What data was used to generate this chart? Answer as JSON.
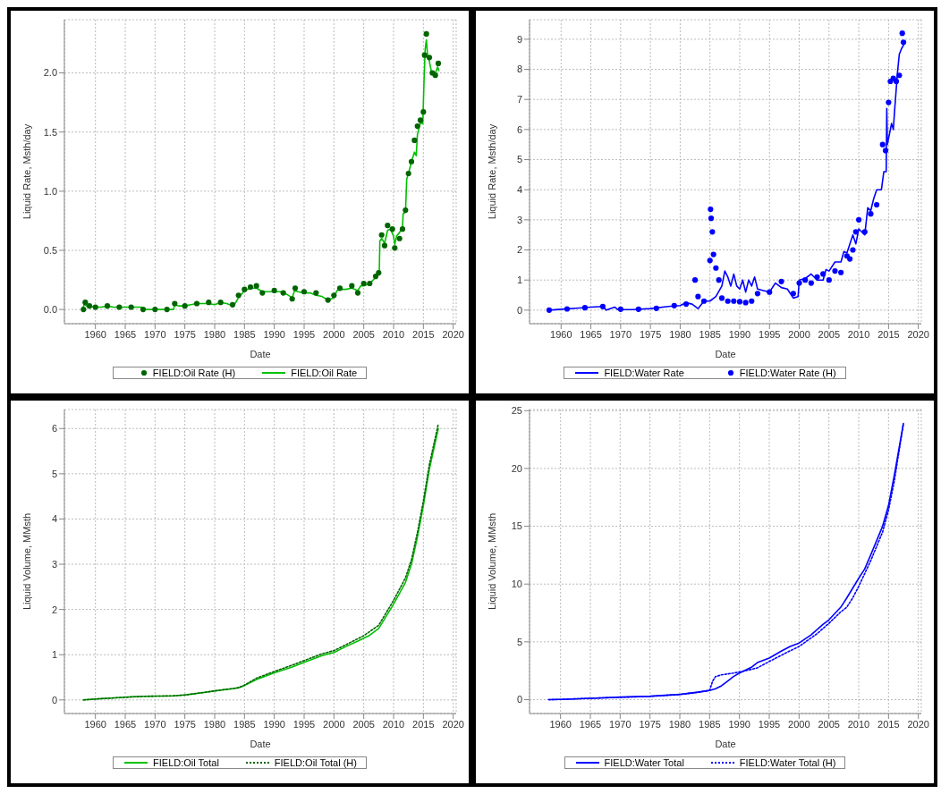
{
  "chart_data": [
    {
      "type": "line",
      "xlabel": "Date",
      "ylabel": "Liquid Rate, Msth/day",
      "xlim": [
        1954.8,
        2020.5
      ],
      "xticks": [
        1960,
        1965,
        1970,
        1975,
        1980,
        1985,
        1990,
        1995,
        2000,
        2005,
        2010,
        2015,
        2020
      ],
      "ylim": [
        -0.12,
        2.45
      ],
      "yticks": [
        {
          "value": 0,
          "label": "0.0"
        },
        {
          "value": 0.5,
          "label": "0.5"
        },
        {
          "value": 1,
          "label": "1.0"
        },
        {
          "value": 1.5,
          "label": "1.5"
        },
        {
          "value": 2,
          "label": "2.0"
        }
      ],
      "grid": true,
      "legend": "bottom",
      "series": [
        {
          "name": "FIELD:Oil Rate (H)",
          "type": "scatter",
          "marker": "circle",
          "color": "#006400",
          "x": [
            1958,
            1958.3,
            1959,
            1960,
            1962,
            1964,
            1966,
            1968,
            1970,
            1972,
            1973.3,
            1975,
            1977,
            1979,
            1981,
            1983,
            1984,
            1985,
            1986,
            1987,
            1988,
            1990,
            1991.5,
            1993,
            1993.5,
            1995,
            1997,
            1999,
            2000,
            2001,
            2003,
            2004,
            2005,
            2006,
            2007,
            2007.5,
            2008,
            2008.5,
            2009,
            2009.8,
            2010.2,
            2011,
            2011.5,
            2012,
            2012.5,
            2013,
            2013.5,
            2014,
            2014.5,
            2015,
            2015.2,
            2015.5,
            2016,
            2016.5,
            2017,
            2017.5
          ],
          "values": [
            0.0,
            0.06,
            0.03,
            0.02,
            0.03,
            0.02,
            0.02,
            0.0,
            0.0,
            0.0,
            0.05,
            0.03,
            0.05,
            0.06,
            0.06,
            0.04,
            0.12,
            0.17,
            0.19,
            0.2,
            0.14,
            0.16,
            0.14,
            0.09,
            0.18,
            0.15,
            0.14,
            0.08,
            0.12,
            0.18,
            0.2,
            0.14,
            0.22,
            0.22,
            0.28,
            0.31,
            0.63,
            0.54,
            0.71,
            0.68,
            0.52,
            0.6,
            0.68,
            0.84,
            1.15,
            1.25,
            1.43,
            1.55,
            1.6,
            1.67,
            2.15,
            2.33,
            2.13,
            2.0,
            1.98,
            2.08
          ]
        },
        {
          "name": "FIELD:Oil Rate",
          "line_style": "solid",
          "color": "#00c000",
          "x": [
            1957.8,
            1958.2,
            1958.5,
            1959,
            1960,
            1961,
            1962,
            1963,
            1964,
            1965,
            1966,
            1967,
            1967.8,
            1968,
            1970,
            1972,
            1973.1,
            1973.3,
            1974,
            1975,
            1976,
            1977,
            1978,
            1979,
            1980,
            1981,
            1982,
            1983.2,
            1984,
            1985,
            1986,
            1987,
            1988,
            1989,
            1990,
            1991,
            1992,
            1993,
            1993.4,
            1994,
            1995,
            1996,
            1997,
            1998,
            1999,
            2000,
            2000.5,
            2001,
            2002,
            2003,
            2004,
            2004.5,
            2005,
            2006,
            2007,
            2007.6,
            2007.7,
            2008,
            2008.5,
            2009,
            2009.5,
            2010,
            2010.2,
            2010.5,
            2011,
            2011.5,
            2011.6,
            2012,
            2012.2,
            2012.5,
            2013,
            2013.5,
            2013.8,
            2014,
            2014.5,
            2014.9,
            2015.1,
            2015.3,
            2015.5,
            2015.7,
            2016,
            2016.3,
            2016.8,
            2017,
            2017.4,
            2017.6
          ],
          "values": [
            0.0,
            0.05,
            0.03,
            0.03,
            0.02,
            0.02,
            0.03,
            0.02,
            0.02,
            0.02,
            0.02,
            0.02,
            0.02,
            0.0,
            0.0,
            0.0,
            0.0,
            0.04,
            0.03,
            0.03,
            0.04,
            0.05,
            0.05,
            0.05,
            0.04,
            0.06,
            0.05,
            0.03,
            0.1,
            0.16,
            0.18,
            0.18,
            0.15,
            0.15,
            0.15,
            0.15,
            0.13,
            0.1,
            0.16,
            0.15,
            0.14,
            0.14,
            0.12,
            0.11,
            0.08,
            0.1,
            0.16,
            0.17,
            0.17,
            0.18,
            0.16,
            0.2,
            0.2,
            0.22,
            0.27,
            0.3,
            0.58,
            0.6,
            0.56,
            0.67,
            0.68,
            0.62,
            0.55,
            0.62,
            0.65,
            0.7,
            0.81,
            0.82,
            1.1,
            1.15,
            1.25,
            1.33,
            1.3,
            1.48,
            1.58,
            1.57,
            1.92,
            2.2,
            2.28,
            2.15,
            2.1,
            2.02,
            1.98,
            2.0,
            2.05,
            2.02
          ]
        }
      ]
    },
    {
      "type": "line",
      "xlabel": "Date",
      "ylabel": "Liquid Rate, Msth/day",
      "xlim": [
        1954.7,
        2020.5
      ],
      "xticks": [
        1960,
        1965,
        1970,
        1975,
        1980,
        1985,
        1990,
        1995,
        2000,
        2005,
        2010,
        2015,
        2020
      ],
      "ylim": [
        -0.45,
        9.65
      ],
      "yticks": [
        0,
        1,
        2,
        3,
        4,
        5,
        6,
        7,
        8,
        9
      ],
      "grid": true,
      "legend": "bottom",
      "series": [
        {
          "name": "FIELD:Water Rate",
          "line_style": "solid",
          "color": "#0000ff",
          "x": [
            1958,
            1960,
            1963,
            1965,
            1967,
            1967.6,
            1969,
            1969.5,
            1972,
            1975,
            1978,
            1980,
            1981,
            1982,
            1983,
            1984,
            1985,
            1986,
            1987,
            1987.5,
            1988,
            1988.5,
            1989,
            1989.5,
            1990,
            1990.5,
            1991,
            1991.5,
            1992,
            1992.5,
            1993,
            1994,
            1995,
            1996,
            1997,
            1998,
            1999,
            1999.8,
            2000,
            2001,
            2002,
            2003,
            2004,
            2004.5,
            2005,
            2006,
            2007,
            2007.5,
            2008,
            2009,
            2009.5,
            2010,
            2011,
            2011.5,
            2012,
            2012.5,
            2013,
            2013.8,
            2014.2,
            2014.6,
            2014.7,
            2014.8,
            2015.5,
            2015.8,
            2016,
            2016.5,
            2016.8,
            2017.2,
            2017.5
          ],
          "values": [
            0.0,
            0.03,
            0.07,
            0.1,
            0.12,
            0.0,
            0.1,
            0.02,
            0.02,
            0.05,
            0.12,
            0.15,
            0.25,
            0.2,
            0.05,
            0.3,
            0.3,
            0.45,
            0.8,
            1.3,
            1.1,
            0.8,
            1.2,
            0.8,
            0.7,
            1.0,
            0.6,
            1.0,
            0.8,
            1.1,
            0.7,
            0.65,
            0.6,
            0.9,
            0.75,
            0.7,
            0.4,
            0.45,
            1.0,
            1.05,
            1.2,
            1.0,
            1.0,
            1.35,
            1.3,
            1.6,
            1.6,
            1.95,
            1.9,
            2.5,
            2.2,
            2.7,
            2.5,
            3.4,
            3.3,
            3.7,
            4.0,
            4.0,
            4.6,
            4.6,
            6.7,
            5.5,
            6.2,
            6.0,
            6.6,
            7.9,
            8.5,
            8.7,
            8.8
          ]
        },
        {
          "name": "FIELD:Water Rate (H)",
          "type": "scatter",
          "marker": "circle",
          "color": "#0000ff",
          "x": [
            1958,
            1961,
            1964,
            1967,
            1970,
            1973,
            1976,
            1979,
            1981,
            1982.5,
            1983,
            1984,
            1985,
            1985.1,
            1985.2,
            1985.4,
            1985.6,
            1986,
            1986.5,
            1987,
            1988,
            1989,
            1990,
            1991,
            1992,
            1993,
            1995,
            1997,
            1999,
            2000,
            2001,
            2002,
            2003,
            2004,
            2005,
            2006,
            2007,
            2008,
            2008.5,
            2009,
            2009.5,
            2010,
            2011,
            2012,
            2013,
            2014,
            2014.5,
            2015,
            2015.3,
            2015.8,
            2016.3,
            2016.8,
            2017.3,
            2017.5
          ],
          "values": [
            0.0,
            0.04,
            0.08,
            0.12,
            0.03,
            0.03,
            0.06,
            0.15,
            0.2,
            1.0,
            0.45,
            0.3,
            1.65,
            3.35,
            3.05,
            2.6,
            1.85,
            1.4,
            1.0,
            0.4,
            0.3,
            0.3,
            0.28,
            0.25,
            0.3,
            0.55,
            0.6,
            0.95,
            0.55,
            0.9,
            1.0,
            0.9,
            1.1,
            1.2,
            1.0,
            1.3,
            1.25,
            1.8,
            1.7,
            2.0,
            2.6,
            3.0,
            2.6,
            3.2,
            3.5,
            5.5,
            5.3,
            6.9,
            7.6,
            7.7,
            7.6,
            7.8,
            9.2,
            8.9
          ]
        }
      ]
    },
    {
      "type": "line",
      "xlabel": "Date",
      "ylabel": "Liquid Volume, MMsth",
      "xlim": [
        1954.8,
        2020.5
      ],
      "xticks": [
        1960,
        1965,
        1970,
        1975,
        1980,
        1985,
        1990,
        1995,
        2000,
        2005,
        2010,
        2015,
        2020
      ],
      "ylim": [
        -0.3,
        6.42
      ],
      "yticks": [
        0,
        1,
        2,
        3,
        4,
        5,
        6
      ],
      "grid": true,
      "legend": "bottom",
      "series": [
        {
          "name": "FIELD:Oil Total",
          "line_style": "solid",
          "color": "#00c000",
          "x": [
            1958,
            1960,
            1965,
            1968,
            1973,
            1975,
            1978,
            1980,
            1983,
            1984,
            1985,
            1987,
            1990,
            1993,
            1995,
            1998,
            2000,
            2002,
            2004,
            2006,
            2007.5,
            2009,
            2010,
            2012,
            2013,
            2014,
            2015,
            2016,
            2017.5
          ],
          "values": [
            0,
            0.02,
            0.06,
            0.08,
            0.09,
            0.11,
            0.16,
            0.2,
            0.25,
            0.27,
            0.32,
            0.45,
            0.6,
            0.73,
            0.83,
            0.98,
            1.05,
            1.18,
            1.3,
            1.43,
            1.58,
            1.9,
            2.12,
            2.6,
            3.0,
            3.6,
            4.3,
            5.1,
            6.0
          ]
        },
        {
          "name": "FIELD:Oil Total (H)",
          "line_style": "dotted",
          "color": "#006400",
          "x": [
            1958,
            1960,
            1965,
            1968,
            1973,
            1975,
            1980,
            1984,
            1985,
            1987,
            1990,
            1993,
            1995,
            1998,
            2000,
            2002,
            2005,
            2007.5,
            2009,
            2010,
            2012,
            2013,
            2014,
            2015,
            2016,
            2017.5
          ],
          "values": [
            0,
            0.02,
            0.06,
            0.08,
            0.09,
            0.11,
            0.2,
            0.27,
            0.33,
            0.48,
            0.63,
            0.77,
            0.87,
            1.02,
            1.09,
            1.22,
            1.42,
            1.65,
            1.98,
            2.2,
            2.7,
            3.1,
            3.7,
            4.4,
            5.2,
            6.1
          ]
        }
      ]
    },
    {
      "type": "line",
      "xlabel": "Date",
      "ylabel": "Liquid Volume, MMsth",
      "xlim": [
        1954.8,
        2020.5
      ],
      "xticks": [
        1960,
        1965,
        1970,
        1975,
        1980,
        1985,
        1990,
        1995,
        2000,
        2005,
        2010,
        2015,
        2020
      ],
      "ylim": [
        -1.2,
        25.1
      ],
      "yticks": [
        0,
        5,
        10,
        15,
        20,
        25
      ],
      "grid": true,
      "legend": "bottom",
      "series": [
        {
          "name": "FIELD:Water Total",
          "line_style": "solid",
          "color": "#0000ff",
          "x": [
            1958,
            1960,
            1965,
            1970,
            1975,
            1980,
            1983,
            1985,
            1986,
            1987,
            1988,
            1989,
            1990,
            1992,
            1993,
            1995,
            1997,
            1998.5,
            2000,
            2002,
            2004,
            2005,
            2007,
            2008,
            2010,
            2011,
            2012,
            2014,
            2015,
            2016,
            2017.5
          ],
          "values": [
            0,
            0.02,
            0.12,
            0.22,
            0.3,
            0.45,
            0.65,
            0.8,
            0.95,
            1.2,
            1.6,
            2.0,
            2.3,
            2.8,
            3.2,
            3.6,
            4.2,
            4.6,
            4.9,
            5.6,
            6.5,
            6.9,
            8.0,
            8.8,
            10.5,
            11.3,
            12.5,
            15.0,
            16.8,
            19.5,
            23.9
          ]
        },
        {
          "name": "FIELD:Water Total (H)",
          "line_style": "dotted",
          "color": "#0000ff",
          "x": [
            1958,
            1960,
            1965,
            1970,
            1975,
            1980,
            1983,
            1985,
            1985.5,
            1986,
            1987,
            1989,
            1991,
            1993,
            1995,
            1998,
            2000,
            2003,
            2005,
            2007,
            2008,
            2009,
            2010,
            2012,
            2014,
            2015,
            2016,
            2017.5
          ],
          "values": [
            0,
            0.02,
            0.12,
            0.2,
            0.28,
            0.45,
            0.63,
            0.8,
            1.6,
            2.0,
            2.15,
            2.3,
            2.5,
            2.75,
            3.3,
            4.1,
            4.6,
            5.7,
            6.6,
            7.6,
            8.0,
            8.8,
            9.8,
            12.0,
            14.5,
            16.4,
            19.0,
            23.9
          ]
        }
      ]
    }
  ]
}
